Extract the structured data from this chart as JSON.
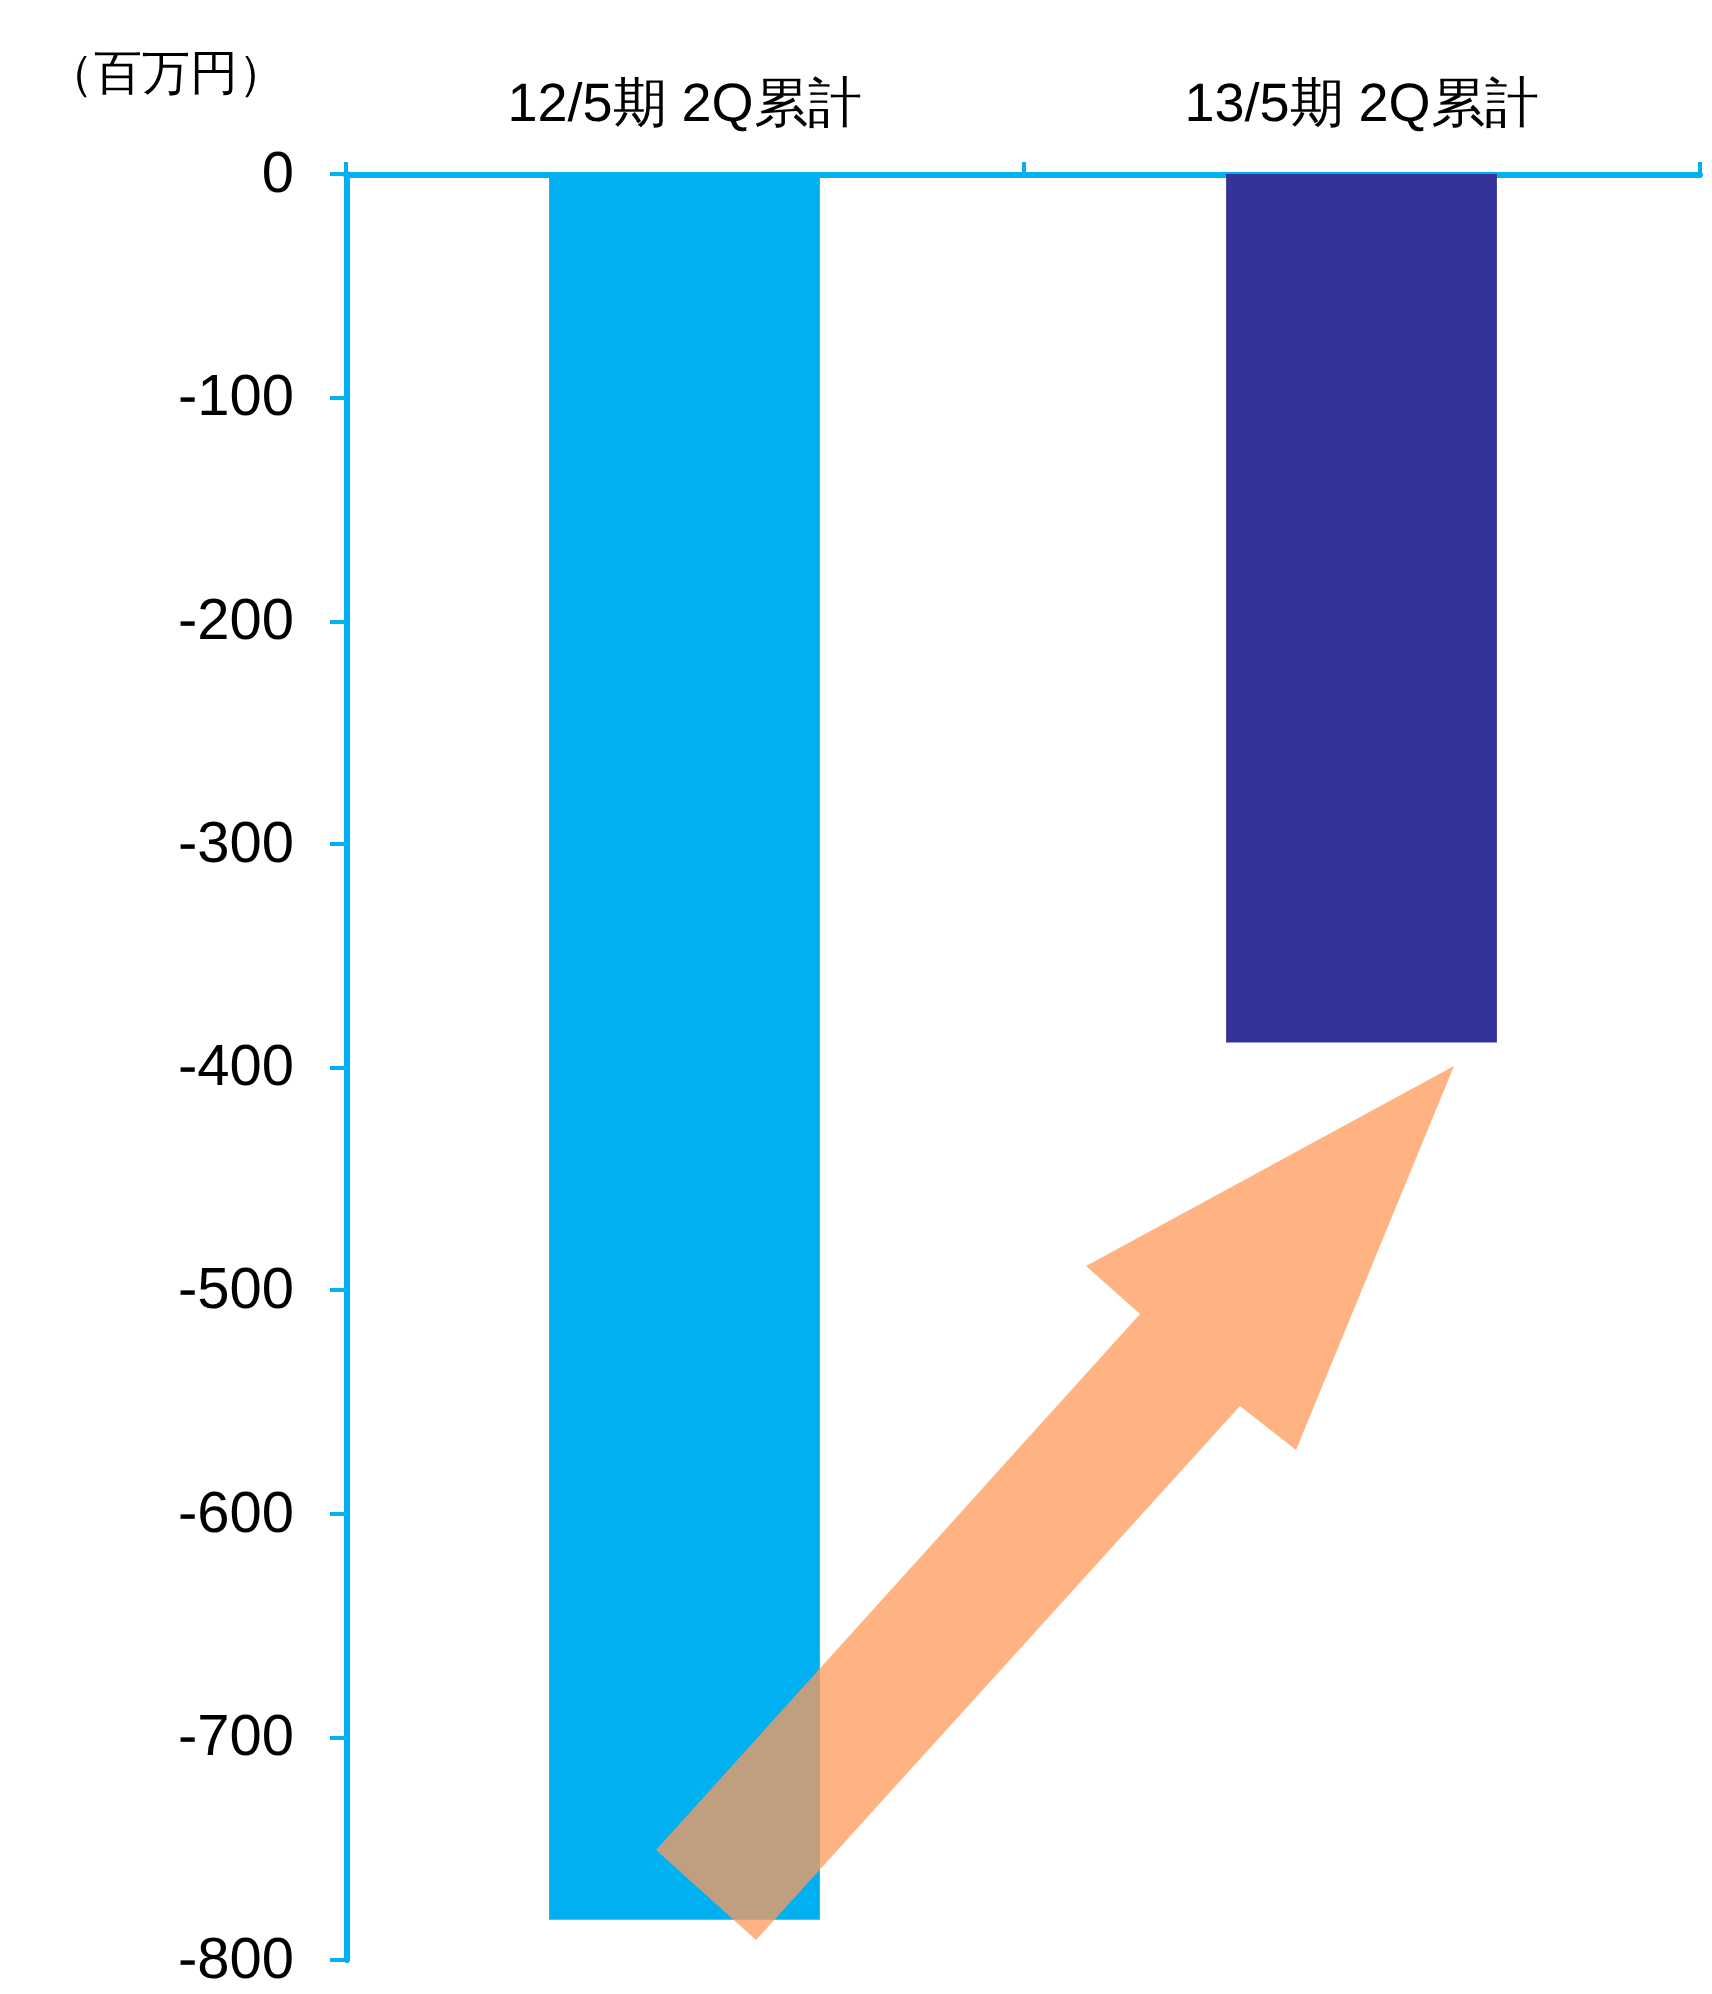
{
  "chart_data": {
    "type": "bar",
    "ylabel": "（百万円）",
    "categories": [
      "12/5期 2Q累計",
      "13/5期 2Q累計"
    ],
    "values": [
      -782,
      -389
    ],
    "colors": [
      "#00b0f0",
      "#333399"
    ],
    "ylim": [
      -800,
      0
    ],
    "yticks": [
      -800,
      -700,
      -600,
      -500,
      -400,
      -300,
      -200,
      -100,
      0
    ],
    "grid": false
  }
}
